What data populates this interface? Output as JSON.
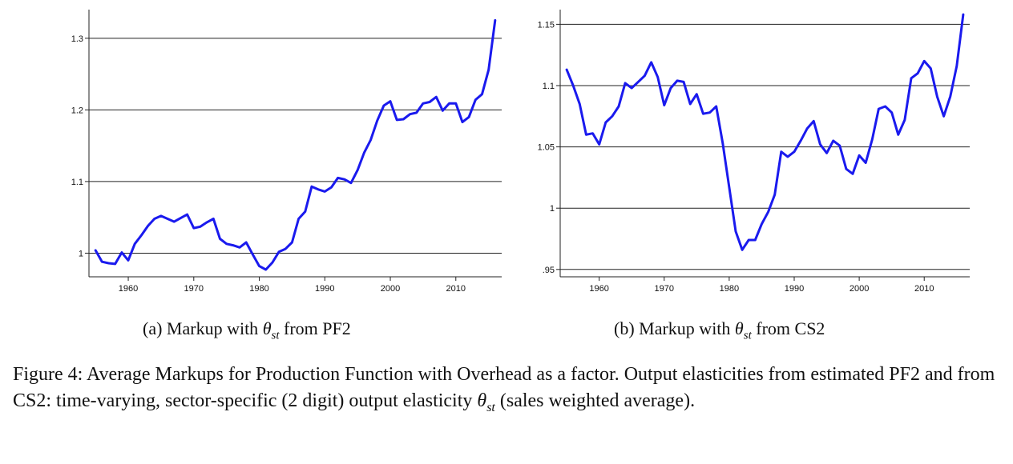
{
  "chart_data": [
    {
      "type": "line",
      "panel": "(a)",
      "x_ticks": [
        1960,
        1970,
        1980,
        1990,
        2000,
        2010
      ],
      "y_ticks": [
        "1",
        "1.1",
        "1.2",
        "1.3"
      ],
      "y_tick_values": [
        1.0,
        1.1,
        1.2,
        1.3
      ],
      "xlim": [
        1954,
        2017
      ],
      "ylim": [
        0.967,
        1.34
      ],
      "grid": "horizontal",
      "line_color": "#1a1aee",
      "series": [
        {
          "x": [
            1955,
            1956,
            1957,
            1958,
            1959,
            1960,
            1961,
            1962,
            1963,
            1964,
            1965,
            1966,
            1967,
            1968,
            1969,
            1970,
            1971,
            1972,
            1973,
            1974,
            1975,
            1976,
            1977,
            1978,
            1979,
            1980,
            1981,
            1982,
            1983,
            1984,
            1985,
            1986,
            1987,
            1988,
            1989,
            1990,
            1991,
            1992,
            1993,
            1994,
            1995,
            1996,
            1997,
            1998,
            1999,
            2000,
            2001,
            2002,
            2003,
            2004,
            2005,
            2006,
            2007,
            2008,
            2009,
            2010,
            2011,
            2012,
            2013,
            2014,
            2015,
            2016
          ],
          "values": [
            1.004,
            0.988,
            0.986,
            0.985,
            1.001,
            0.99,
            1.013,
            1.025,
            1.038,
            1.048,
            1.052,
            1.048,
            1.044,
            1.049,
            1.054,
            1.035,
            1.037,
            1.043,
            1.048,
            1.02,
            1.013,
            1.011,
            1.008,
            1.015,
            0.998,
            0.982,
            0.977,
            0.987,
            1.002,
            1.006,
            1.015,
            1.048,
            1.058,
            1.093,
            1.089,
            1.086,
            1.092,
            1.105,
            1.103,
            1.098,
            1.116,
            1.14,
            1.158,
            1.185,
            1.206,
            1.212,
            1.186,
            1.187,
            1.194,
            1.196,
            1.209,
            1.211,
            1.218,
            1.199,
            1.209,
            1.209,
            1.183,
            1.19,
            1.214,
            1.222,
            1.256,
            1.325
          ]
        }
      ]
    },
    {
      "type": "line",
      "panel": "(b)",
      "x_ticks": [
        1960,
        1970,
        1980,
        1990,
        2000,
        2010
      ],
      "y_ticks": [
        ".95",
        "1",
        "1.05",
        "1.1",
        "1.15"
      ],
      "y_tick_values": [
        0.95,
        1.0,
        1.05,
        1.1,
        1.15
      ],
      "xlim": [
        1954,
        2017
      ],
      "ylim": [
        0.944,
        1.162
      ],
      "grid": "horizontal",
      "line_color": "#1a1aee",
      "series": [
        {
          "x": [
            1955,
            1956,
            1957,
            1958,
            1959,
            1960,
            1961,
            1962,
            1963,
            1964,
            1965,
            1966,
            1967,
            1968,
            1969,
            1970,
            1971,
            1972,
            1973,
            1974,
            1975,
            1976,
            1977,
            1978,
            1979,
            1980,
            1981,
            1982,
            1983,
            1984,
            1985,
            1986,
            1987,
            1988,
            1989,
            1990,
            1991,
            1992,
            1993,
            1994,
            1995,
            1996,
            1997,
            1998,
            1999,
            2000,
            2001,
            2002,
            2003,
            2004,
            2005,
            2006,
            2007,
            2008,
            2009,
            2010,
            2011,
            2012,
            2013,
            2014,
            2015,
            2016
          ],
          "values": [
            1.113,
            1.1,
            1.085,
            1.06,
            1.061,
            1.052,
            1.07,
            1.075,
            1.083,
            1.102,
            1.098,
            1.103,
            1.108,
            1.119,
            1.107,
            1.084,
            1.098,
            1.104,
            1.103,
            1.085,
            1.093,
            1.077,
            1.078,
            1.083,
            1.053,
            1.017,
            0.981,
            0.966,
            0.974,
            0.974,
            0.987,
            0.997,
            1.011,
            1.046,
            1.042,
            1.046,
            1.055,
            1.065,
            1.071,
            1.052,
            1.045,
            1.055,
            1.051,
            1.032,
            1.028,
            1.043,
            1.037,
            1.056,
            1.081,
            1.083,
            1.078,
            1.06,
            1.072,
            1.106,
            1.11,
            1.12,
            1.114,
            1.091,
            1.075,
            1.091,
            1.116,
            1.158
          ]
        }
      ]
    }
  ],
  "subcaptions": {
    "a": {
      "prefix": "(a) Markup with ",
      "theta": "θ",
      "sub": "st",
      "suffix": " from PF2"
    },
    "b": {
      "prefix": "(b) Markup with ",
      "theta": "θ",
      "sub": "st",
      "suffix": " from CS2"
    }
  },
  "caption": {
    "text": "Figure 4: Average Markups for Production Function with Overhead as a factor. Output elasticities from estimated PF2 and from CS2: time-varying, sector-specific (2 digit) output elasticity ",
    "theta": "θ",
    "sub": "st",
    "suffix": " (sales weighted average)."
  }
}
